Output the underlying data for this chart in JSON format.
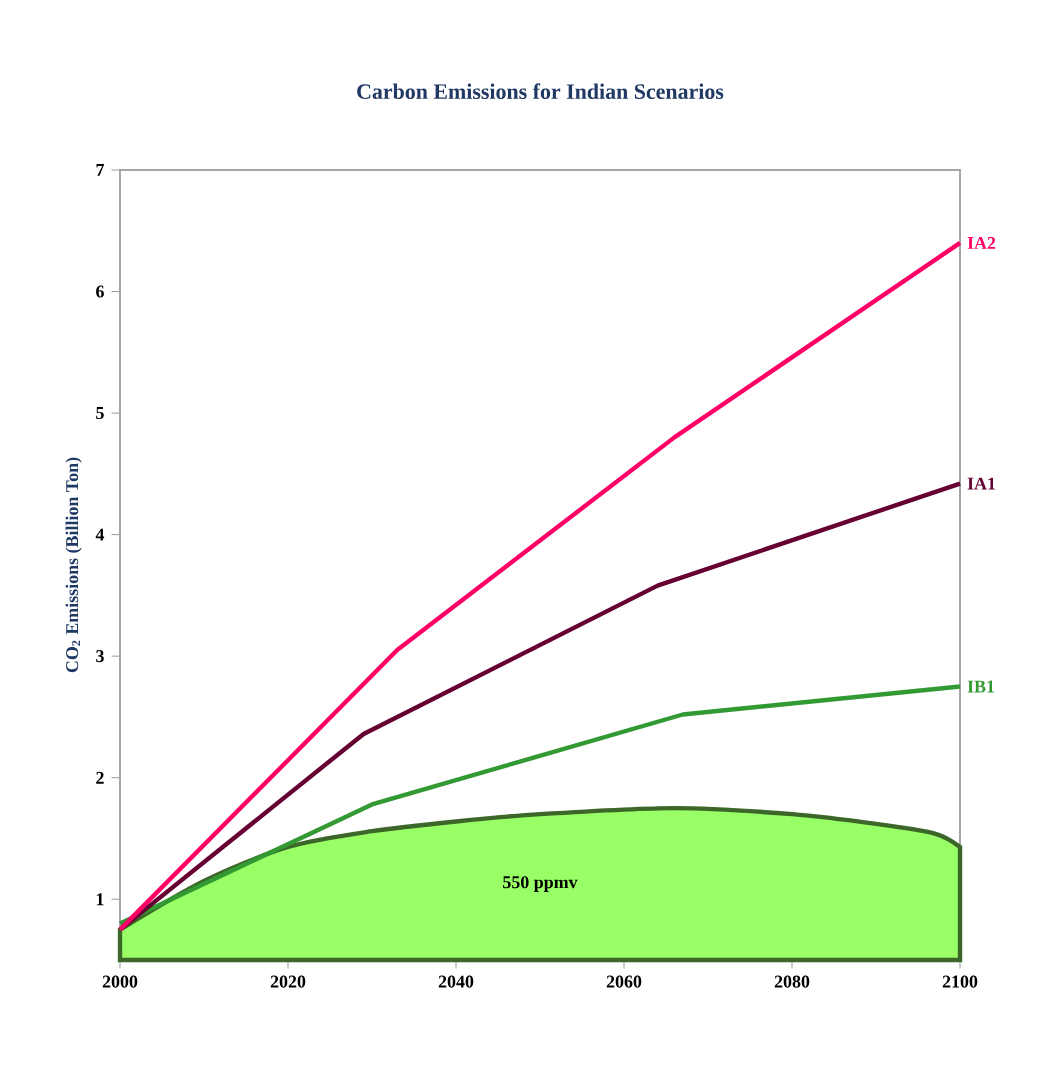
{
  "chart_data": {
    "type": "line",
    "title": "Carbon Emissions for Indian Scenarios",
    "ylabel": "CO$_{2}$ Emissions (Billion Ton)",
    "xlim": [
      2000,
      2100
    ],
    "xticks": [
      2000,
      2020,
      2040,
      2060,
      2080,
      2100
    ],
    "ylim": [
      0.5,
      7
    ],
    "yticks": [
      1,
      2,
      3,
      4,
      5,
      6,
      7
    ],
    "grid": false,
    "series": [
      {
        "name": "550 ppmv",
        "type": "area",
        "color": "#99ff66",
        "x": [
          2000,
          2010,
          2020,
          2030,
          2040,
          2050,
          2066,
          2080,
          2090,
          2097,
          2100
        ],
        "values": [
          0.75,
          1.15,
          1.43,
          1.56,
          1.64,
          1.7,
          1.75,
          1.7,
          1.62,
          1.54,
          1.43
        ]
      },
      {
        "name": "IB1",
        "color": "#339933",
        "x": [
          2000,
          2030,
          2067,
          2100
        ],
        "values": [
          0.8,
          1.78,
          2.52,
          2.75
        ]
      },
      {
        "name": "IA1",
        "color": "#660033",
        "x": [
          2000,
          2029,
          2064,
          2100
        ],
        "values": [
          0.75,
          2.36,
          3.58,
          4.42
        ]
      },
      {
        "name": "IA2",
        "color": "#ff0066",
        "x": [
          2000,
          2033,
          2066,
          2100
        ],
        "values": [
          0.75,
          3.05,
          4.8,
          6.4
        ]
      }
    ]
  }
}
